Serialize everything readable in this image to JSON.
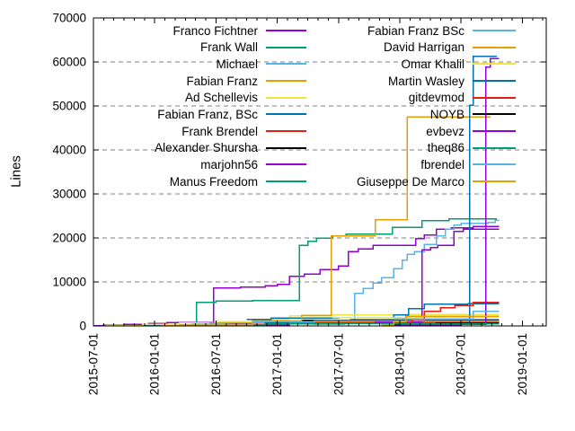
{
  "chart_data": {
    "type": "line",
    "title": "",
    "xlabel": "",
    "ylabel": "Lines",
    "grid": true,
    "legend_position": "top-inside-two-columns",
    "background": "#ffffff",
    "axis_color": "#000000",
    "grid_color": "#808080",
    "ylim": [
      0,
      70000
    ],
    "y_ticks": [
      0,
      10000,
      20000,
      30000,
      40000,
      50000,
      60000,
      70000
    ],
    "xlim_years": [
      2015.5,
      2019.195
    ],
    "x_ticks": [
      {
        "year": 2015.5,
        "label": "2015-07-01"
      },
      {
        "year": 2016.0,
        "label": "2016-01-01"
      },
      {
        "year": 2016.5,
        "label": "2016-07-01"
      },
      {
        "year": 2017.0,
        "label": "2017-01-01"
      },
      {
        "year": 2017.5,
        "label": "2017-07-01"
      },
      {
        "year": 2018.0,
        "label": "2018-01-01"
      },
      {
        "year": 2018.5,
        "label": "2018-07-01"
      },
      {
        "year": 2019.0,
        "label": "2019-01-01"
      }
    ],
    "legend_split_index": 10,
    "series": [
      {
        "name": "Franco Fichtner",
        "color": "#9400d3",
        "points": [
          [
            2015.5,
            50
          ],
          [
            2015.58,
            200
          ],
          [
            2015.75,
            350
          ],
          [
            2015.95,
            550
          ],
          [
            2016.1,
            750
          ],
          [
            2016.48,
            8600
          ],
          [
            2016.7,
            8850
          ],
          [
            2016.9,
            9150
          ],
          [
            2017.0,
            9400
          ],
          [
            2017.1,
            11300
          ],
          [
            2017.22,
            11800
          ],
          [
            2017.35,
            12800
          ],
          [
            2017.5,
            13600
          ],
          [
            2017.58,
            16900
          ],
          [
            2017.66,
            17500
          ],
          [
            2017.78,
            18300
          ],
          [
            2018.13,
            19900
          ],
          [
            2018.2,
            20700
          ],
          [
            2018.3,
            22000
          ],
          [
            2018.42,
            22300
          ],
          [
            2018.6,
            22640
          ],
          [
            2018.81,
            22640
          ]
        ]
      },
      {
        "name": "Frank Wall",
        "color": "#009e73",
        "points": [
          [
            2015.8,
            100
          ],
          [
            2016.05,
            250
          ],
          [
            2016.34,
            5400
          ],
          [
            2016.5,
            5700
          ],
          [
            2016.8,
            5800
          ],
          [
            2017.18,
            18300
          ],
          [
            2017.25,
            19200
          ],
          [
            2017.32,
            20000
          ],
          [
            2017.45,
            20500
          ],
          [
            2017.56,
            20900
          ],
          [
            2017.94,
            22400
          ],
          [
            2018.18,
            23900
          ],
          [
            2018.4,
            24300
          ],
          [
            2018.79,
            24300
          ]
        ]
      },
      {
        "name": "Michael",
        "color": "#56b4e9",
        "points": [
          [
            2017.3,
            400
          ],
          [
            2017.55,
            1200
          ],
          [
            2017.63,
            7400
          ],
          [
            2017.7,
            8500
          ],
          [
            2017.78,
            9800
          ],
          [
            2017.85,
            11000
          ],
          [
            2017.95,
            13000
          ],
          [
            2018.02,
            15000
          ],
          [
            2018.06,
            16300
          ],
          [
            2018.12,
            16900
          ],
          [
            2018.2,
            18500
          ],
          [
            2018.3,
            20500
          ],
          [
            2018.37,
            22000
          ],
          [
            2018.44,
            22900
          ],
          [
            2018.5,
            23300
          ],
          [
            2018.72,
            23500
          ],
          [
            2018.78,
            24050
          ],
          [
            2018.81,
            24050
          ]
        ]
      },
      {
        "name": "Fabian Franz",
        "color": "#e69f00",
        "points": [
          [
            2016.05,
            300
          ],
          [
            2016.4,
            600
          ],
          [
            2016.8,
            800
          ],
          [
            2017.1,
            950
          ],
          [
            2018.0,
            1050
          ],
          [
            2018.81,
            1050
          ]
        ]
      },
      {
        "name": "Ad Schellevis",
        "color": "#f0e442",
        "points": [
          [
            2015.6,
            100
          ],
          [
            2015.9,
            400
          ],
          [
            2016.2,
            700
          ],
          [
            2016.5,
            1000
          ],
          [
            2016.9,
            1500
          ],
          [
            2017.1,
            2300
          ],
          [
            2017.45,
            2500
          ],
          [
            2018.0,
            2600
          ],
          [
            2018.81,
            2600
          ]
        ]
      },
      {
        "name": "Fabian Franz, BSc",
        "color": "#0072b2",
        "points": [
          [
            2016.75,
            1500
          ],
          [
            2016.95,
            1800
          ],
          [
            2017.5,
            1900
          ],
          [
            2017.95,
            2500
          ],
          [
            2018.07,
            3950
          ],
          [
            2018.2,
            5000
          ],
          [
            2018.55,
            5100
          ],
          [
            2018.81,
            5100
          ]
        ]
      },
      {
        "name": "Frank Brendel",
        "color": "#e51e10",
        "points": [
          [
            2016.6,
            400
          ],
          [
            2016.9,
            600
          ],
          [
            2017.1,
            780
          ],
          [
            2018.0,
            820
          ],
          [
            2018.81,
            820
          ]
        ]
      },
      {
        "name": "Alexander Shursha",
        "color": "#000000",
        "points": [
          [
            2016.55,
            300
          ],
          [
            2016.9,
            800
          ],
          [
            2017.2,
            1300
          ],
          [
            2017.6,
            1420
          ],
          [
            2018.81,
            1420
          ]
        ]
      },
      {
        "name": "marjohn56",
        "color": "#9400d3",
        "points": [
          [
            2016.8,
            300
          ],
          [
            2017.1,
            600
          ],
          [
            2017.8,
            900
          ],
          [
            2018.18,
            17300
          ],
          [
            2018.25,
            17800
          ],
          [
            2018.31,
            18300
          ],
          [
            2018.44,
            21500
          ],
          [
            2018.52,
            22000
          ],
          [
            2018.81,
            22000
          ]
        ]
      },
      {
        "name": "Manus Freedom",
        "color": "#009e73",
        "points": [
          [
            2016.4,
            300
          ],
          [
            2016.9,
            450
          ],
          [
            2017.3,
            580
          ],
          [
            2018.81,
            580
          ]
        ]
      },
      {
        "name": "Fabian Franz BSc",
        "color": "#56b4e9",
        "points": [
          [
            2016.3,
            400
          ],
          [
            2016.45,
            650
          ],
          [
            2016.8,
            900
          ],
          [
            2017.3,
            1150
          ],
          [
            2018.81,
            1150
          ]
        ]
      },
      {
        "name": "David Harrigan",
        "color": "#e69f00",
        "points": [
          [
            2016.2,
            300
          ],
          [
            2016.8,
            1200
          ],
          [
            2017.2,
            2400
          ],
          [
            2017.44,
            20500
          ],
          [
            2017.8,
            24100
          ],
          [
            2018.06,
            47550
          ],
          [
            2018.74,
            47550
          ]
        ]
      },
      {
        "name": "Omar Khalil",
        "color": "#f0e442",
        "points": [
          [
            2017.45,
            1900
          ],
          [
            2018.2,
            2050
          ],
          [
            2018.81,
            2050
          ]
        ]
      },
      {
        "name": "Martin Wasley",
        "color": "#0072b2",
        "points": [
          [
            2017.9,
            300
          ],
          [
            2018.3,
            500
          ],
          [
            2018.57,
            50200
          ],
          [
            2018.6,
            61300
          ],
          [
            2018.79,
            61300
          ]
        ]
      },
      {
        "name": "gitdevmod",
        "color": "#e51e10",
        "points": [
          [
            2017.95,
            750
          ],
          [
            2018.1,
            1500
          ],
          [
            2018.2,
            3300
          ],
          [
            2018.33,
            4100
          ],
          [
            2018.45,
            4700
          ],
          [
            2018.6,
            5400
          ],
          [
            2018.81,
            5400
          ]
        ]
      },
      {
        "name": "NOYB",
        "color": "#000000",
        "points": [
          [
            2017.95,
            300
          ],
          [
            2018.3,
            650
          ],
          [
            2018.81,
            650
          ]
        ]
      },
      {
        "name": "evbevz",
        "color": "#9400d3",
        "points": [
          [
            2017.9,
            200
          ],
          [
            2018.5,
            400
          ],
          [
            2018.7,
            58800
          ],
          [
            2018.74,
            60800
          ],
          [
            2018.81,
            60800
          ]
        ]
      },
      {
        "name": "theq86",
        "color": "#009e73",
        "points": [
          [
            2018.0,
            420
          ],
          [
            2018.81,
            420
          ]
        ]
      },
      {
        "name": "fbrendel",
        "color": "#56b4e9",
        "points": [
          [
            2017.95,
            1600
          ],
          [
            2018.6,
            3300
          ],
          [
            2018.81,
            3300
          ]
        ]
      },
      {
        "name": "Giuseppe De Marco",
        "color": "#e69f00",
        "points": [
          [
            2017.85,
            300
          ],
          [
            2017.95,
            1000
          ],
          [
            2018.05,
            2250
          ],
          [
            2018.81,
            2250
          ]
        ]
      }
    ]
  }
}
